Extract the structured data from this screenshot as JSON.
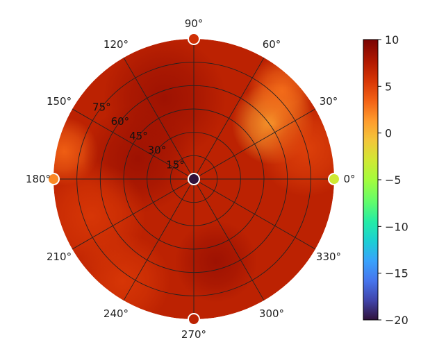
{
  "chart_data": {
    "type": "heatmap",
    "subtype": "polar",
    "angular_ticks": [
      "0°",
      "30°",
      "60°",
      "90°",
      "120°",
      "150°",
      "180°",
      "210°",
      "240°",
      "270°",
      "300°",
      "330°"
    ],
    "angular_tick_values": [
      0,
      30,
      60,
      90,
      120,
      150,
      180,
      210,
      240,
      270,
      300,
      330
    ],
    "radial_ticks": [
      "15°",
      "30°",
      "45°",
      "60°",
      "75°"
    ],
    "radial_tick_values": [
      15,
      30,
      45,
      60,
      75
    ],
    "radial_range": [
      0,
      90
    ],
    "colorbar": {
      "range": [
        -20,
        10
      ],
      "ticks": [
        10,
        5,
        0,
        -5,
        -10,
        -15,
        -20
      ],
      "tick_labels": [
        "10",
        "5",
        "0",
        "−5",
        "−10",
        "−15",
        "−20"
      ],
      "colormap": "turbo",
      "position": "right"
    },
    "background_value": 7,
    "features": [
      {
        "angle": 35,
        "radius": 62,
        "value": 1,
        "spread": 12
      },
      {
        "angle": 45,
        "radius": 80,
        "value": 3,
        "spread": 10
      },
      {
        "angle": 168,
        "radius": 85,
        "value": 3.5,
        "spread": 10
      },
      {
        "angle": 110,
        "radius": 55,
        "value": 8.5,
        "spread": 18
      },
      {
        "angle": 160,
        "radius": 38,
        "value": 8.5,
        "spread": 16
      },
      {
        "angle": 285,
        "radius": 55,
        "value": 8.5,
        "spread": 12
      },
      {
        "angle": 15,
        "radius": 75,
        "value": 5,
        "spread": 14
      },
      {
        "angle": 235,
        "radius": 80,
        "value": 5.5,
        "spread": 14
      },
      {
        "angle": 200,
        "radius": 70,
        "value": 5.5,
        "spread": 16
      }
    ],
    "markers": [
      {
        "angle": 0,
        "radius": 0,
        "value": -20
      },
      {
        "angle": 0,
        "radius": 90,
        "value": -3
      },
      {
        "angle": 90,
        "radius": 90,
        "value": 6
      },
      {
        "angle": 180,
        "radius": 90,
        "value": 2
      },
      {
        "angle": 270,
        "radius": 90,
        "value": 7
      }
    ],
    "grid": true
  }
}
